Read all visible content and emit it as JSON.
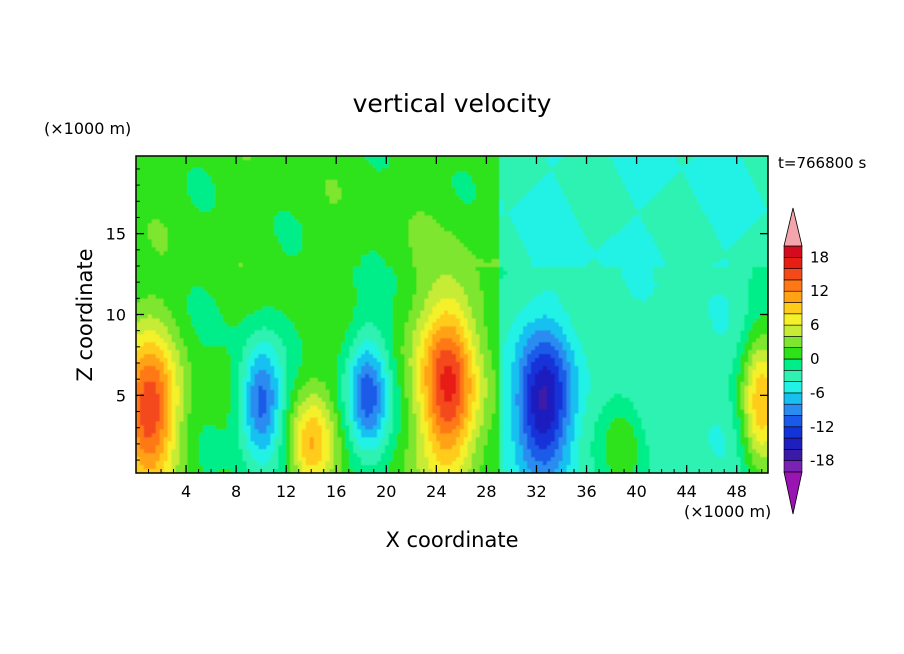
{
  "chart_data": {
    "type": "heatmap",
    "title": "vertical velocity",
    "xlabel": "X coordinate",
    "ylabel": "Z coordinate",
    "x_unit": "(×1000 m)",
    "y_unit": "(×1000 m)",
    "time_label": "t=766800 s",
    "xlim": [
      0,
      50.5
    ],
    "ylim": [
      0.2,
      19.8
    ],
    "x_ticks": [
      4,
      8,
      12,
      16,
      20,
      24,
      28,
      32,
      36,
      40,
      44,
      48
    ],
    "y_ticks": [
      5,
      10,
      15
    ],
    "colorbar": {
      "levels": [
        -20,
        -18,
        -16,
        -14,
        -12,
        -10,
        -8,
        -6,
        -4,
        -2,
        0,
        2,
        4,
        6,
        8,
        10,
        12,
        14,
        16,
        18,
        20
      ],
      "tick_labels": [
        -18,
        -12,
        -6,
        0,
        6,
        12,
        18
      ],
      "colors": [
        "#7b22b5",
        "#3c1aa8",
        "#1f1fbf",
        "#1233d8",
        "#1a5ae8",
        "#2a8cf0",
        "#18c0f0",
        "#22f2e6",
        "#2ff2b2",
        "#00ee8a",
        "#2ee21a",
        "#7ee62e",
        "#c6ec36",
        "#f4f02a",
        "#ffcc1a",
        "#ffa213",
        "#ff7816",
        "#f44a1a",
        "#e81d14",
        "#d40a1e"
      ],
      "extend_low_color": "#9a14b4",
      "extend_high_color": "#f4a4ad"
    },
    "cells": [
      {
        "x": 1,
        "z_range": [
          1.5,
          6.5
        ],
        "value": 15
      },
      {
        "x": 10,
        "z_range": [
          3,
          6
        ],
        "value": -12
      },
      {
        "x": 14,
        "z_range": [
          1,
          3
        ],
        "value": 9
      },
      {
        "x": 18.5,
        "z_range": [
          3.5,
          6.5
        ],
        "value": -11
      },
      {
        "x": 25,
        "z_range": [
          2,
          9
        ],
        "value": 16
      },
      {
        "x": 32.5,
        "z_range": [
          2.5,
          6.5
        ],
        "value": -13
      },
      {
        "x": 39,
        "z_range": [
          1,
          3
        ],
        "value": 5
      },
      {
        "x": 50,
        "z_range": [
          2,
          7
        ],
        "value": 12
      }
    ]
  }
}
